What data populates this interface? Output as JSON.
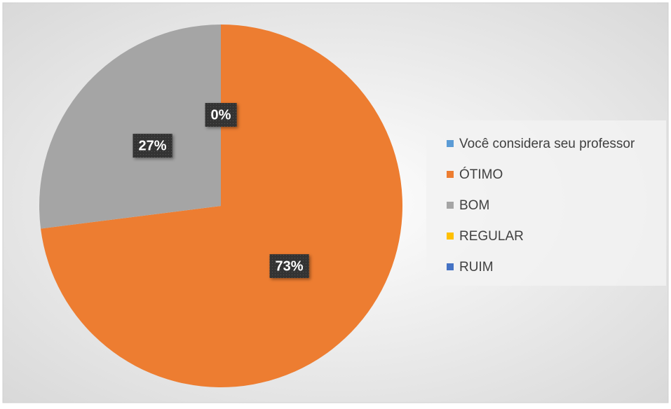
{
  "chart_data": {
    "type": "pie",
    "categories": [
      "Você considera seu professor",
      "ÓTIMO",
      "BOM",
      "REGULAR",
      "RUIM"
    ],
    "values": [
      0,
      73,
      27,
      0,
      0
    ],
    "value_labels": [
      "0%",
      "73%",
      "27%",
      null,
      null
    ],
    "colors": [
      "#5b9bd5",
      "#ed7d31",
      "#a5a5a5",
      "#ffc000",
      "#4472c4"
    ],
    "legend": "right"
  }
}
